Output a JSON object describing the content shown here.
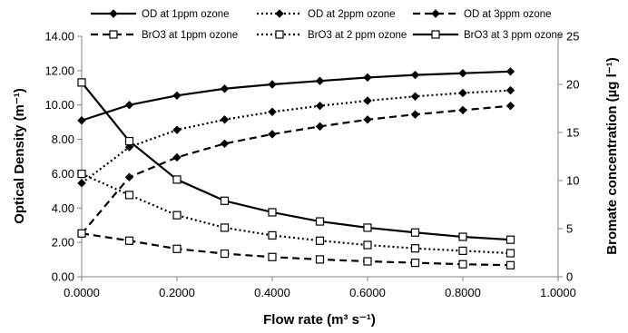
{
  "chart_data": {
    "type": "line",
    "xlabel": "Flow rate (m³ s⁻¹)",
    "ylabel_left": "Optical Density (m⁻¹)",
    "ylabel_right": "Bromate concentration (µg l⁻¹)",
    "xlim": [
      0,
      1
    ],
    "ylim_left": [
      0,
      14
    ],
    "ylim_right": [
      0,
      25
    ],
    "x_ticks": [
      "0.0000",
      "0.2000",
      "0.4000",
      "0.6000",
      "0.8000",
      "1.0000"
    ],
    "y_left_ticks": [
      "0.00",
      "2.00",
      "4.00",
      "6.00",
      "8.00",
      "10.00",
      "12.00",
      "14.00"
    ],
    "y_right_ticks": [
      "0",
      "5",
      "10",
      "15",
      "20",
      "25"
    ],
    "grid": false,
    "legend_position": "top",
    "x": [
      0,
      0.1,
      0.2,
      0.3,
      0.4,
      0.5,
      0.6,
      0.7,
      0.8,
      0.9
    ],
    "series": [
      {
        "name": "OD at 1ppm ozone",
        "axis": "left",
        "marker": "diamond",
        "dash": "solid",
        "values": [
          9.1,
          10.0,
          10.55,
          10.95,
          11.2,
          11.4,
          11.6,
          11.75,
          11.85,
          11.95
        ]
      },
      {
        "name": "OD at 2ppm ozone",
        "axis": "left",
        "marker": "diamond",
        "dash": "dotted",
        "values": [
          5.45,
          7.55,
          8.55,
          9.15,
          9.6,
          9.95,
          10.25,
          10.5,
          10.7,
          10.85
        ]
      },
      {
        "name": "OD at 3ppm ozone",
        "axis": "left",
        "marker": "diamond",
        "dash": "dashed",
        "values": [
          2.5,
          5.8,
          6.95,
          7.75,
          8.3,
          8.75,
          9.15,
          9.45,
          9.7,
          9.95
        ]
      },
      {
        "name": "BrO3 at 1ppm ozone",
        "axis": "right",
        "marker": "square",
        "dash": "dashed",
        "values": [
          4.5,
          3.75,
          2.9,
          2.4,
          2.05,
          1.8,
          1.6,
          1.45,
          1.3,
          1.2
        ]
      },
      {
        "name": "BrO3 at 2 ppm ozone",
        "axis": "right",
        "marker": "square",
        "dash": "dotted",
        "values": [
          10.7,
          8.5,
          6.4,
          5.1,
          4.3,
          3.75,
          3.3,
          2.95,
          2.7,
          2.45
        ]
      },
      {
        "name": "BrO3 at 3 ppm ozone",
        "axis": "right",
        "marker": "square",
        "dash": "solid",
        "values": [
          20.2,
          14.1,
          10.1,
          7.9,
          6.7,
          5.75,
          5.1,
          4.6,
          4.15,
          3.85
        ]
      }
    ]
  }
}
